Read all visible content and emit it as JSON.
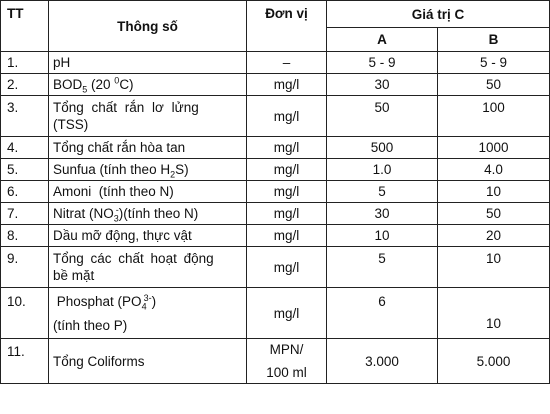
{
  "header": {
    "tt": "TT",
    "param": "Thông số",
    "unit": "Đơn vị",
    "value_group": "Giá trị C",
    "col_a": "A",
    "col_b": "B"
  },
  "rows": [
    {
      "tt": "1.",
      "unit": "–",
      "a": "5 - 9",
      "b": "5 - 9",
      "param": {
        "t1": "pH"
      }
    },
    {
      "tt": "2.",
      "unit": "mg/l",
      "a": "30",
      "b": "50",
      "param": {
        "t1": "BOD",
        "sub": "5",
        "t2": " (20 ",
        "sup": "0",
        "t3": "C)"
      }
    },
    {
      "tt": "3.",
      "unit": "mg/l",
      "a": "50",
      "b": "100",
      "param": {
        "line1": "Tổng chất rắn lơ lửng",
        "line2": "(TSS)"
      }
    },
    {
      "tt": "4.",
      "unit": "mg/l",
      "a": "500",
      "b": "1000",
      "param": {
        "t1": "Tổng chất rắn hòa tan"
      }
    },
    {
      "tt": "5.",
      "unit": "mg/l",
      "a": "1.0",
      "b": "4.0",
      "param": {
        "t1": "Sunfua (tính theo H",
        "sub": "2",
        "t2": "S)"
      }
    },
    {
      "tt": "6.",
      "unit": "mg/l",
      "a": "5",
      "b": "10",
      "param": {
        "t1": "Amoni  (tính theo N)"
      }
    },
    {
      "tt": "7.",
      "unit": "mg/l",
      "a": "30",
      "b": "50",
      "param": {
        "t1": "Nitrat (NO",
        "sub": "3",
        "sup": "-",
        "t2": ")(tính theo N)"
      }
    },
    {
      "tt": "8.",
      "unit": "mg/l",
      "a": "10",
      "b": "20",
      "param": {
        "t1": "Dầu mỡ động, thực vật"
      }
    },
    {
      "tt": "9.",
      "unit": "mg/l",
      "a": "5",
      "b": "10",
      "param": {
        "line1": "Tổng các chất hoạt động",
        "line2": "bề mặt"
      }
    },
    {
      "tt": "10.",
      "unit": "mg/l",
      "a": "6",
      "b": "10",
      "param": {
        "t1": " Phosphat (PO",
        "sub": "4",
        "sup": "3-",
        "t2": ")",
        "line2": "(tính theo P)"
      }
    },
    {
      "tt": "11.",
      "unit_line1": "MPN/",
      "unit_line2": "100 ml",
      "a": "3.000",
      "b": "5.000",
      "param": {
        "t1": "Tổng Coliforms"
      }
    }
  ]
}
